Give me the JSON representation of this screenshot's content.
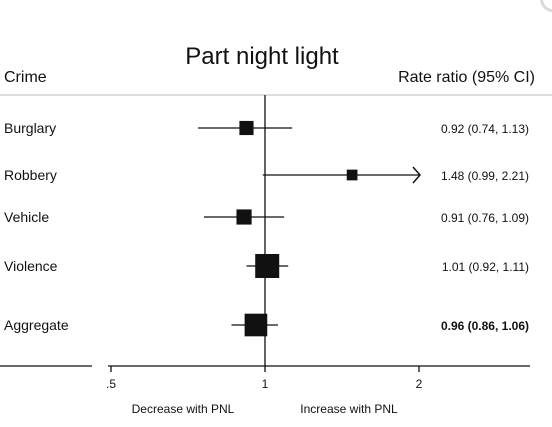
{
  "chart_data": {
    "type": "forest",
    "title": "Part night light",
    "left_header": "Crime",
    "right_header": "Rate ratio (95% CI)",
    "x_scale": "log",
    "xlim": [
      0.25,
      2.6
    ],
    "reference_line": 1,
    "x_ticks": [
      0.5,
      1,
      2
    ],
    "x_tick_labels": [
      ".5",
      "1",
      "2"
    ],
    "direction_labels": {
      "left": "Decrease with PNL",
      "right": "Increase with PNL"
    },
    "rows": [
      {
        "label": "Burglary",
        "estimate": 0.92,
        "lower": 0.74,
        "upper": 1.13,
        "text": "0.92 (0.74, 1.13)",
        "weight": 0.42,
        "bold": false,
        "arrow_right": false
      },
      {
        "label": "Robbery",
        "estimate": 1.48,
        "lower": 0.99,
        "upper": 2.21,
        "text": "1.48 (0.99, 2.21)",
        "weight": 0.22,
        "bold": false,
        "arrow_right": true
      },
      {
        "label": "Vehicle",
        "estimate": 0.91,
        "lower": 0.76,
        "upper": 1.09,
        "text": "0.91 (0.76, 1.09)",
        "weight": 0.48,
        "bold": false,
        "arrow_right": false
      },
      {
        "label": "Violence",
        "estimate": 1.01,
        "lower": 0.92,
        "upper": 1.11,
        "text": "1.01 (0.92, 1.11)",
        "weight": 1.0,
        "bold": false,
        "arrow_right": false
      },
      {
        "label": "Aggregate",
        "estimate": 0.96,
        "lower": 0.86,
        "upper": 1.06,
        "text": "0.96 (0.86, 1.06)",
        "weight": 0.92,
        "bold": true,
        "arrow_right": false
      }
    ]
  }
}
